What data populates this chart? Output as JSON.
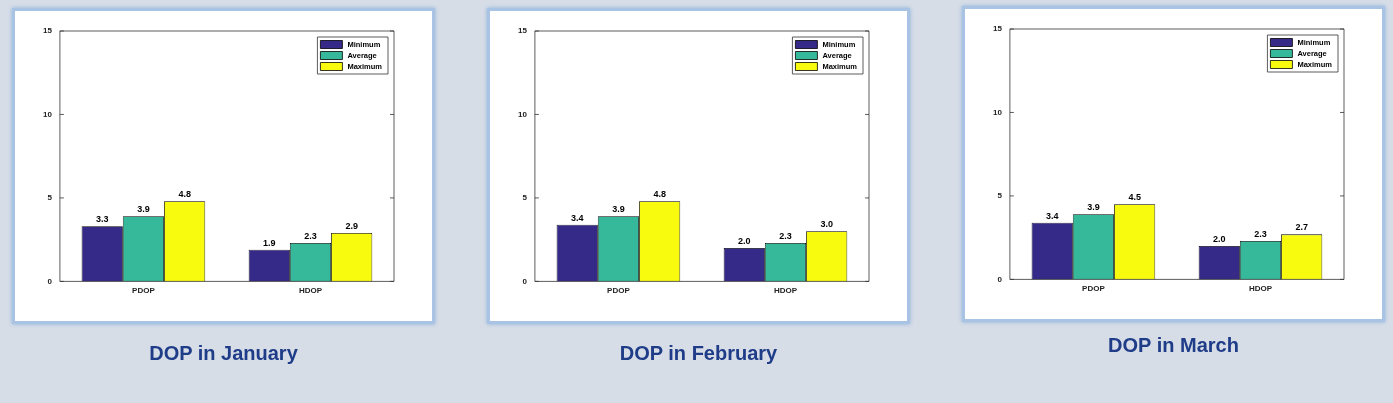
{
  "chart_data": [
    {
      "type": "bar",
      "title": "DOP in January",
      "categories": [
        "PDOP",
        "HDOP"
      ],
      "ylim": [
        0,
        15
      ],
      "yticks": [
        0,
        5,
        10,
        15
      ],
      "legend": "top right",
      "series": [
        {
          "name": "Minimum",
          "color": "#352a87",
          "values": [
            3.3,
            1.9
          ],
          "value_labels": [
            "3.3",
            "1.9"
          ]
        },
        {
          "name": "Average",
          "color": "#36b89a",
          "values": [
            3.9,
            2.3
          ],
          "value_labels": [
            "3.9",
            "2.3"
          ]
        },
        {
          "name": "Maximum",
          "color": "#f9fb0e",
          "values": [
            4.8,
            2.9
          ],
          "value_labels": [
            "4.8",
            "2.9"
          ]
        }
      ]
    },
    {
      "type": "bar",
      "title": "DOP in February",
      "categories": [
        "PDOP",
        "HDOP"
      ],
      "ylim": [
        0,
        15
      ],
      "yticks": [
        0,
        5,
        10,
        15
      ],
      "legend": "top right",
      "series": [
        {
          "name": "Minimum",
          "color": "#352a87",
          "values": [
            3.4,
            2.0
          ],
          "value_labels": [
            "3.4",
            "2.0"
          ]
        },
        {
          "name": "Average",
          "color": "#36b89a",
          "values": [
            3.9,
            2.3
          ],
          "value_labels": [
            "3.9",
            "2.3"
          ]
        },
        {
          "name": "Maximum",
          "color": "#f9fb0e",
          "values": [
            4.8,
            3.0
          ],
          "value_labels": [
            "4.8",
            "3.0"
          ]
        }
      ]
    },
    {
      "type": "bar",
      "title": "DOP in March",
      "categories": [
        "PDOP",
        "HDOP"
      ],
      "ylim": [
        0,
        15
      ],
      "yticks": [
        0,
        5,
        10,
        15
      ],
      "legend": "top right",
      "series": [
        {
          "name": "Minimum",
          "color": "#352a87",
          "values": [
            3.4,
            2.0
          ],
          "value_labels": [
            "3.4",
            "2.0"
          ]
        },
        {
          "name": "Average",
          "color": "#36b89a",
          "values": [
            3.9,
            2.3
          ],
          "value_labels": [
            "3.9",
            "2.3"
          ]
        },
        {
          "name": "Maximum",
          "color": "#f9fb0e",
          "values": [
            4.5,
            2.7
          ],
          "value_labels": [
            "4.5",
            "2.7"
          ]
        }
      ]
    }
  ]
}
